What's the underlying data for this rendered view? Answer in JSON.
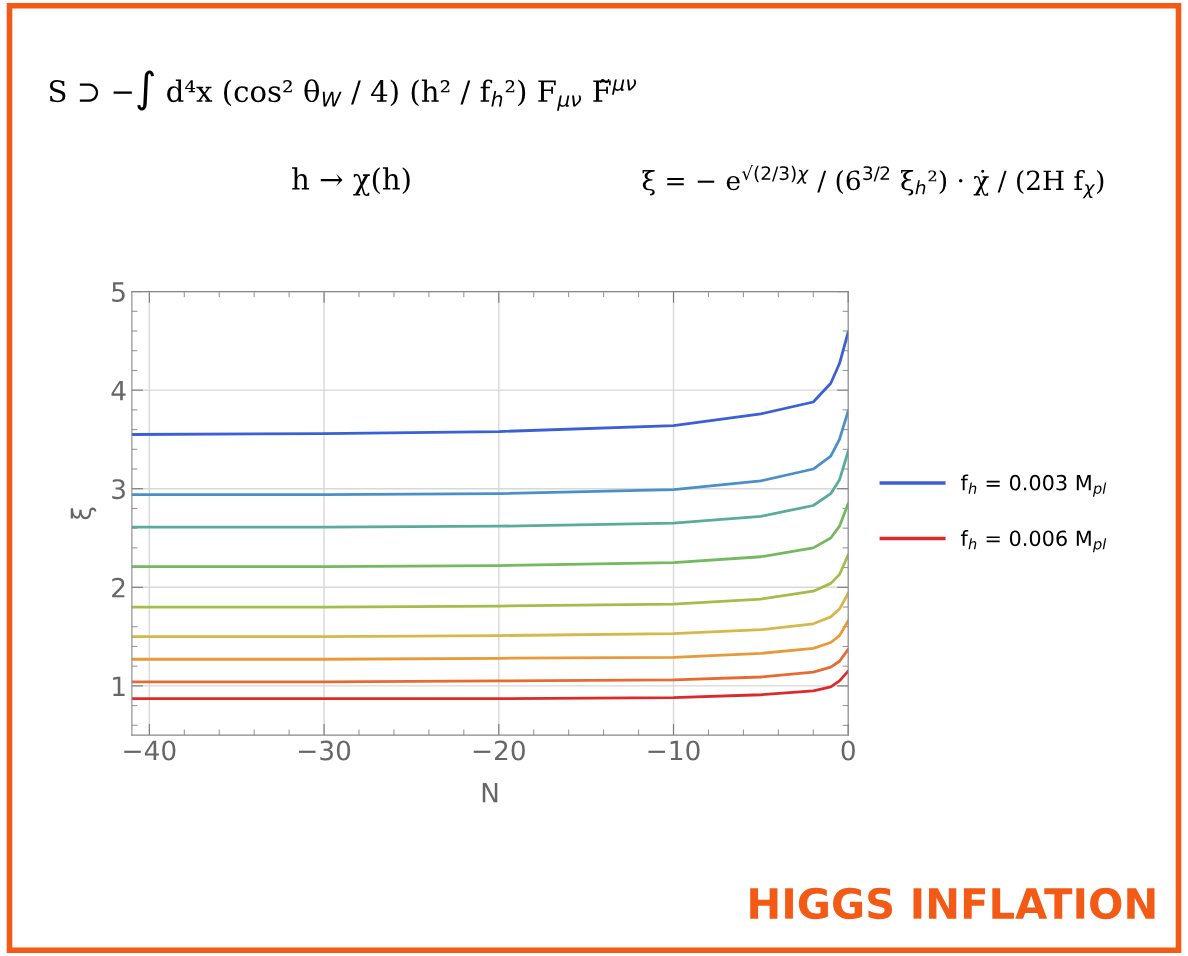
{
  "chart_data": {
    "type": "line",
    "title": "HIGGS INFLATION",
    "xlabel": "N",
    "ylabel": "ξ",
    "annotations": [
      "S ⊃ −∫ d⁴x (cos² θ$_{W}$ / 4) (h² / f$_{h}$²) F$_{μν}$ F̃$^{μν}$",
      "h → χ(h)",
      "ξ = − e$^{√(2/3)χ}$ / (6$^{3/2}$ ξ$_{h}$²) · χ̇ / (2H f$_{χ}$)"
    ],
    "x": [
      -41,
      -30,
      -20,
      -10,
      -5,
      -2,
      -1,
      -0.5,
      0
    ],
    "series": [
      {
        "name": "f$_{h}$ = 0.003 M$_{pl}$",
        "color": "#3b5fd6",
        "values": [
          3.55,
          3.56,
          3.58,
          3.64,
          3.76,
          3.88,
          4.07,
          4.27,
          4.59
        ]
      },
      {
        "color": "#4a90c8",
        "values": [
          2.94,
          2.94,
          2.95,
          2.99,
          3.08,
          3.2,
          3.33,
          3.5,
          3.79
        ]
      },
      {
        "color": "#5aab99",
        "values": [
          2.61,
          2.61,
          2.62,
          2.65,
          2.72,
          2.83,
          2.95,
          3.09,
          3.38
        ]
      },
      {
        "color": "#74b860",
        "values": [
          2.21,
          2.21,
          2.22,
          2.25,
          2.31,
          2.4,
          2.5,
          2.62,
          2.85
        ]
      },
      {
        "color": "#a4bd4a",
        "values": [
          1.8,
          1.8,
          1.81,
          1.83,
          1.88,
          1.96,
          2.04,
          2.13,
          2.33
        ]
      },
      {
        "color": "#d4b84a",
        "values": [
          1.5,
          1.5,
          1.51,
          1.53,
          1.57,
          1.63,
          1.7,
          1.78,
          1.94
        ]
      },
      {
        "color": "#e89a3a",
        "values": [
          1.27,
          1.27,
          1.28,
          1.29,
          1.33,
          1.38,
          1.44,
          1.51,
          1.66
        ]
      },
      {
        "color": "#e86a30",
        "values": [
          1.04,
          1.04,
          1.05,
          1.06,
          1.09,
          1.14,
          1.19,
          1.25,
          1.37
        ]
      },
      {
        "name": "f$_{h}$ = 0.006 M$_{pl}$",
        "color": "#dc2a2a",
        "values": [
          0.87,
          0.87,
          0.87,
          0.88,
          0.91,
          0.95,
          0.99,
          1.05,
          1.15
        ]
      }
    ],
    "xlim": [
      -41,
      0
    ],
    "ylim": [
      0.5,
      5
    ],
    "xticks": [
      {
        "value": -40,
        "label": "−40"
      },
      {
        "value": -30,
        "label": "−30"
      },
      {
        "value": -20,
        "label": "−20"
      },
      {
        "value": -10,
        "label": "−10"
      },
      0
    ],
    "yticks": [
      1,
      2,
      3,
      4,
      5
    ],
    "grid": true,
    "legend": "right",
    "marker": "none",
    "line_style": "solid"
  }
}
